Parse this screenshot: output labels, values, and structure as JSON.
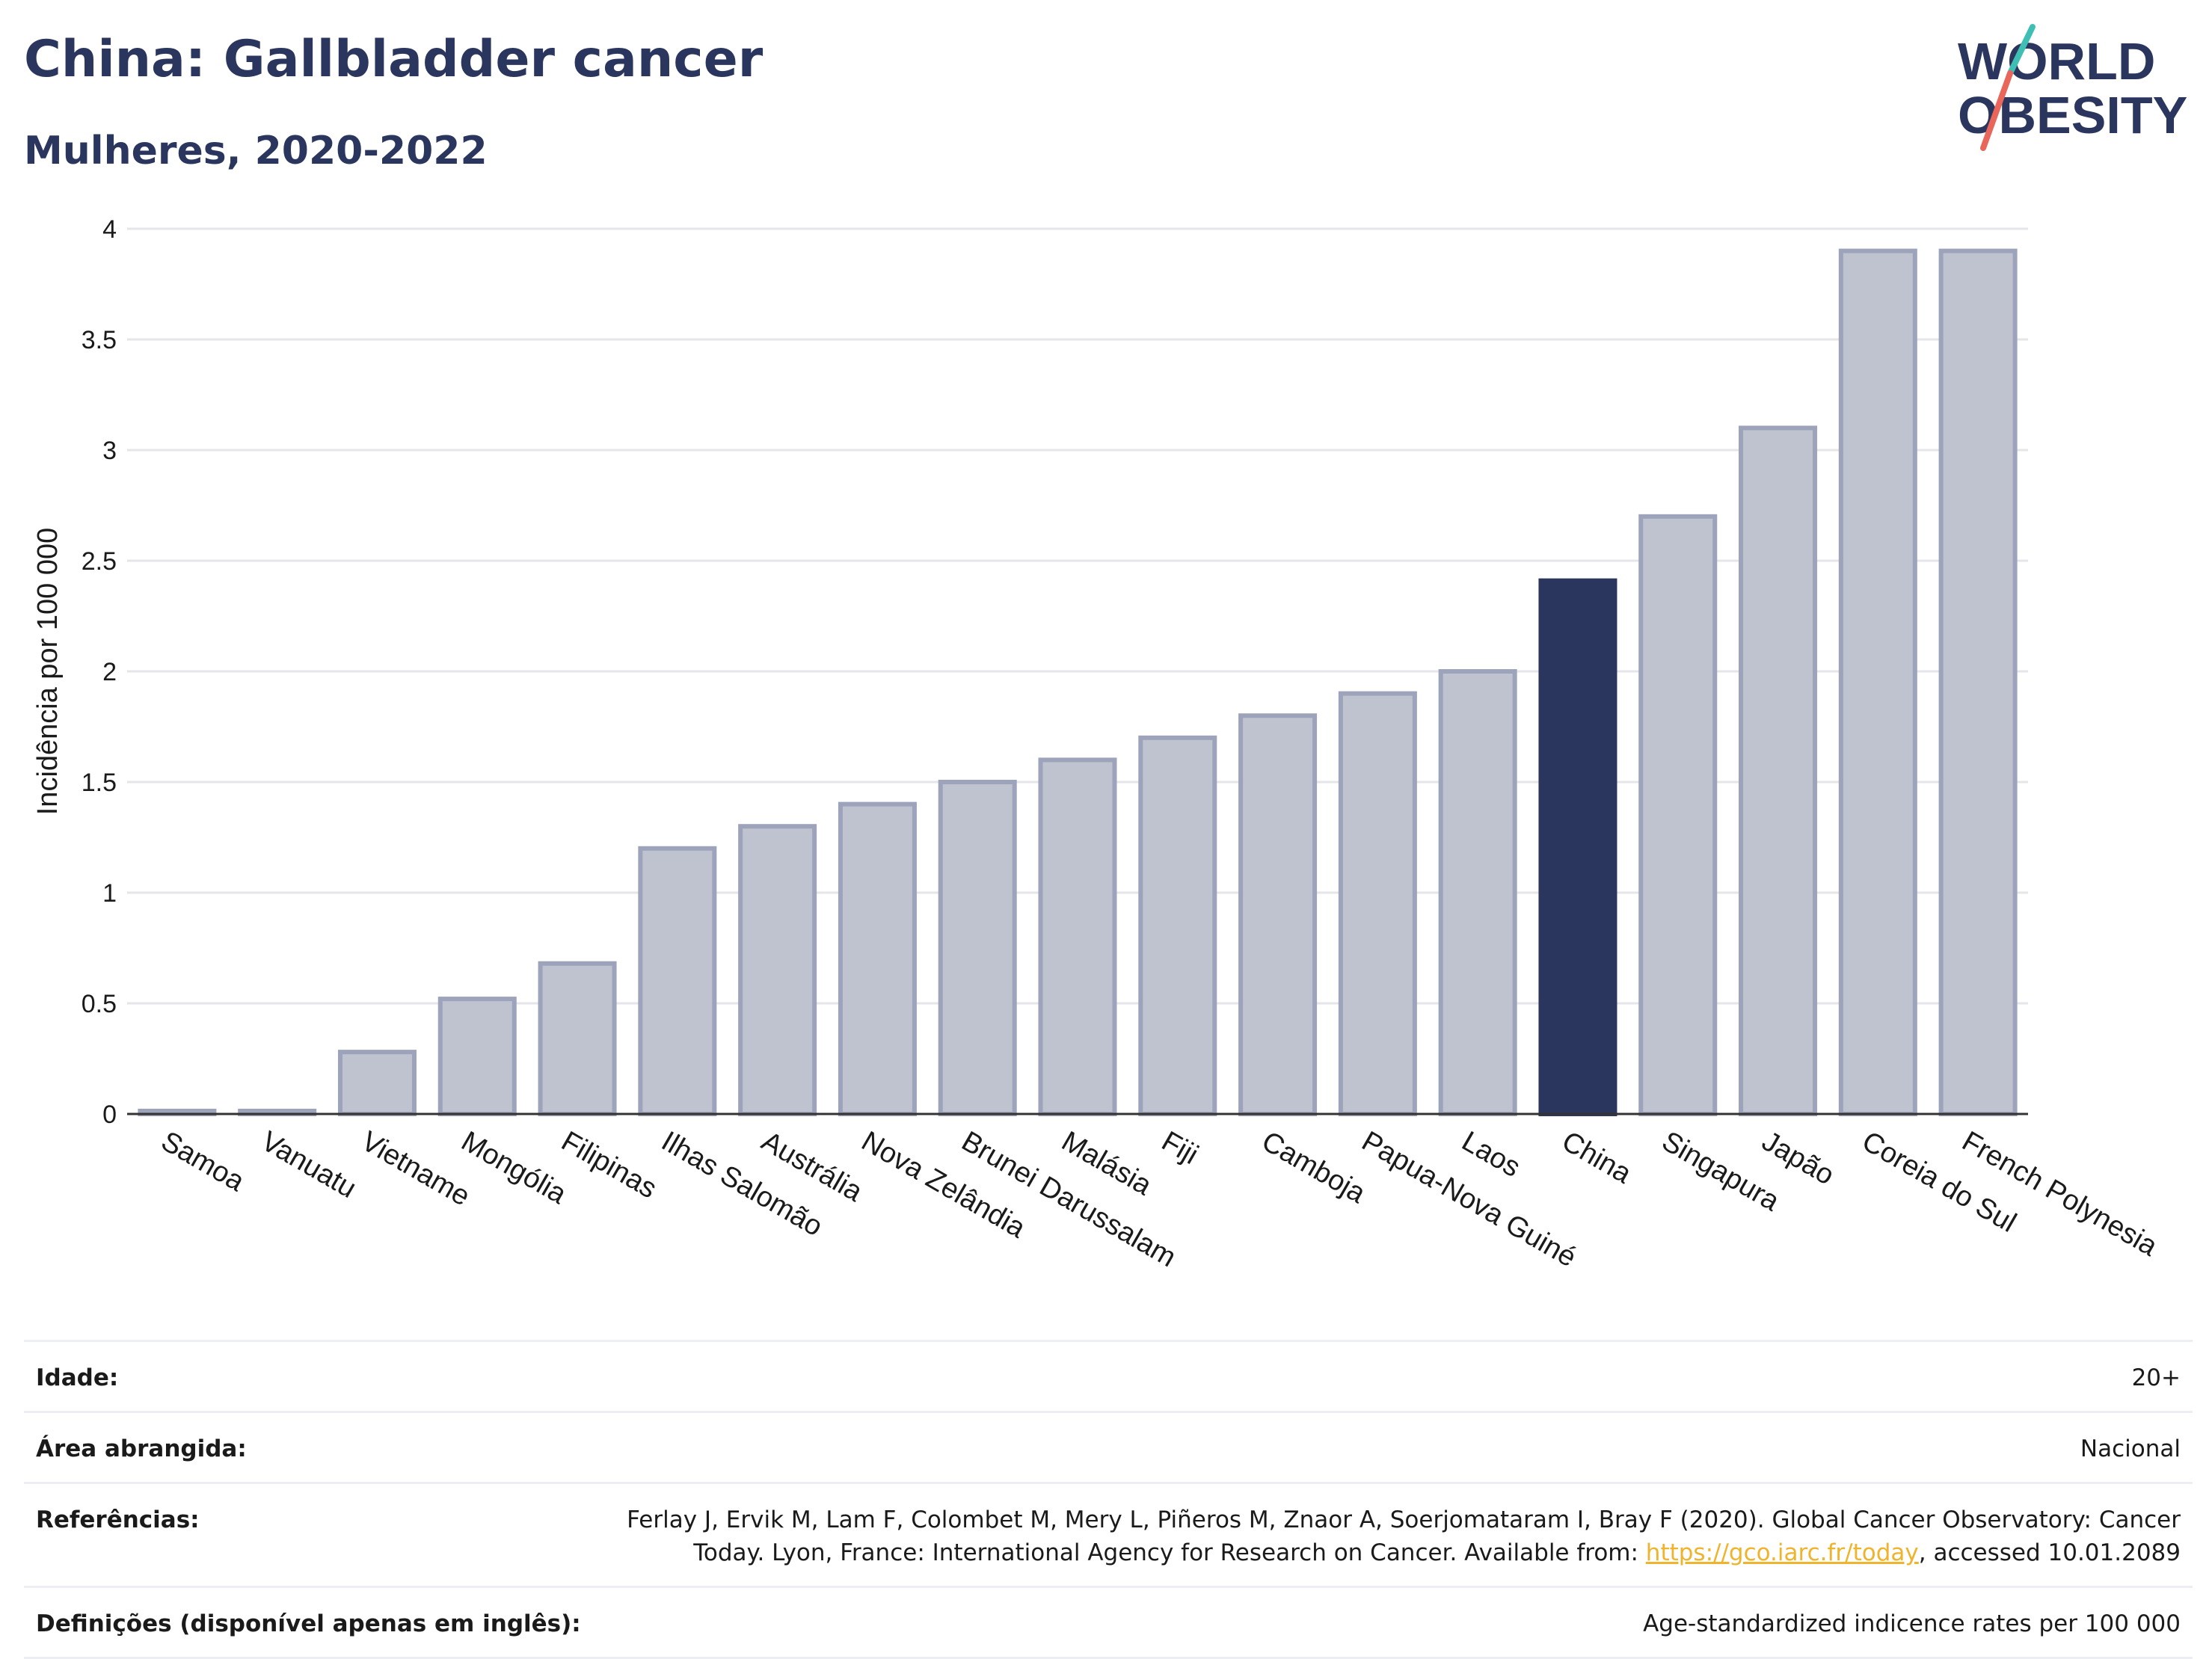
{
  "header": {
    "title": "China: Gallbladder cancer",
    "subtitle": "Mulheres, 2020-2022"
  },
  "logo": {
    "line1": "WORLD",
    "line2": "OBESITY",
    "colors": {
      "text": "#2b365e",
      "slash_top": "#3fbfb3",
      "slash_bottom": "#e8665a"
    }
  },
  "chart_data": {
    "type": "bar",
    "title": "",
    "xlabel": "",
    "ylabel": "Incidência por 100 000",
    "ylim": [
      0,
      4
    ],
    "yticks": [
      0,
      0.5,
      1,
      1.5,
      2,
      2.5,
      3,
      3.5,
      4
    ],
    "ytick_labels": [
      "0",
      "0.5",
      "1",
      "1.5",
      "2",
      "2.5",
      "3",
      "3.5",
      "4"
    ],
    "categories": [
      "Samoa",
      "Vanuatu",
      "Vietname",
      "Mongólia",
      "Filipinas",
      "Ilhas Salomão",
      "Austrália",
      "Nova Zelândia",
      "Brunei Darussalam",
      "Malásia",
      "Fiji",
      "Camboja",
      "Papua-Nova Guiné",
      "Laos",
      "China",
      "Singapura",
      "Japão",
      "Coreia do Sul",
      "French Polynesia"
    ],
    "values": [
      0,
      0,
      0.28,
      0.52,
      0.68,
      1.2,
      1.3,
      1.4,
      1.5,
      1.6,
      1.7,
      1.8,
      1.9,
      2.0,
      2.41,
      2.7,
      3.1,
      3.9,
      3.9
    ],
    "highlight": "China",
    "grid": true,
    "colors": {
      "bar": "#bfc3cf",
      "bar_border": "#9ca3ba",
      "highlight": "#2b365e",
      "grid": "#e6e6ea",
      "axis": "#333333"
    }
  },
  "meta": {
    "rows": [
      {
        "label": "Idade:",
        "value": "20+"
      },
      {
        "label": "Área abrangida:",
        "value": "Nacional"
      },
      {
        "label": "Referências:",
        "value_line1": "Ferlay J, Ervik M, Lam F, Colombet M, Mery L, Piñeros M, Znaor A, Soerjomataram I, Bray F (2020). Global Cancer Observatory: Cancer",
        "value_pre": "Today. Lyon, France: International Agency for Research on Cancer. Available from: ",
        "link": "https://gco.iarc.fr/today",
        "value_post": ", accessed 10.01.2089"
      },
      {
        "label": "Definições (disponível apenas em inglês):",
        "value": "Age-standardized indicence rates per 100 000"
      }
    ]
  }
}
